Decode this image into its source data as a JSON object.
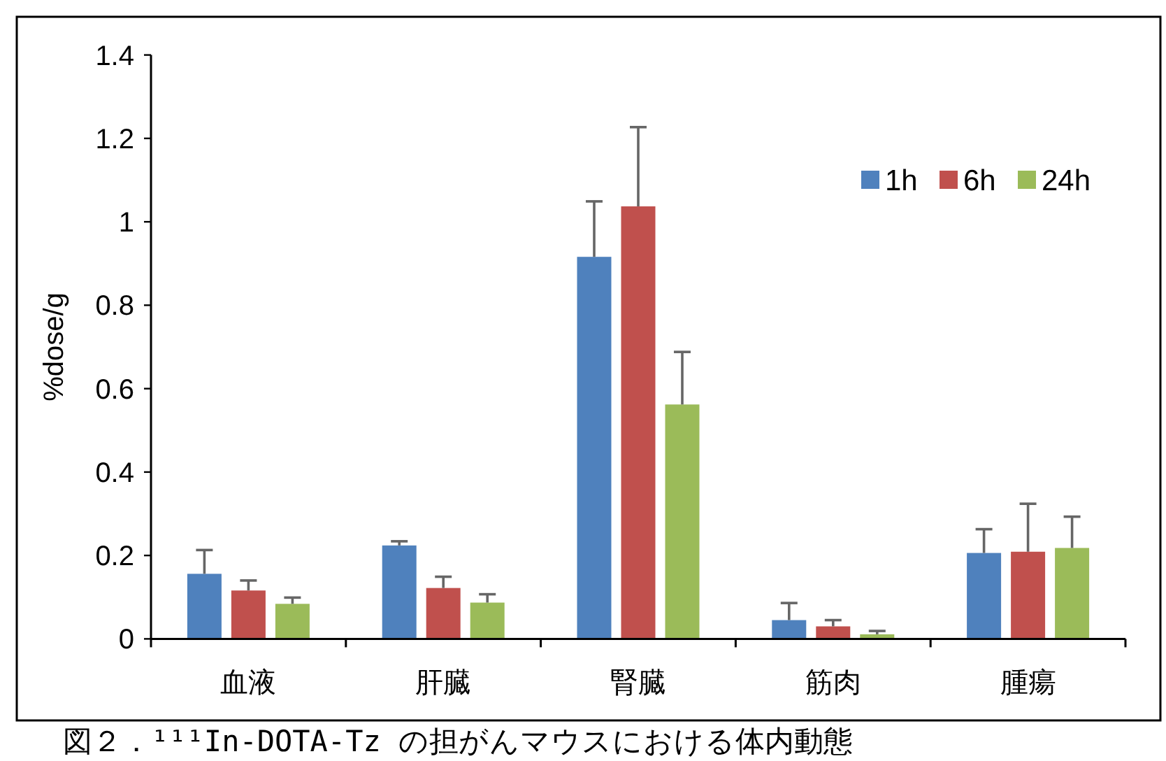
{
  "chart_data": {
    "type": "bar",
    "ylabel": "%dose/g",
    "categories": [
      "血液",
      "肝臓",
      "腎臓",
      "筋肉",
      "腫瘍"
    ],
    "series": [
      {
        "name": "1h",
        "color": "#4f81bd",
        "values": [
          0.156,
          0.224,
          0.916,
          0.045,
          0.206
        ],
        "errors": [
          [
            0.156,
            0.213
          ],
          [
            0.224,
            0.234
          ],
          [
            0.916,
            1.049
          ],
          [
            0.045,
            0.086
          ],
          [
            0.206,
            0.263
          ]
        ]
      },
      {
        "name": "6h",
        "color": "#c0504d",
        "values": [
          0.116,
          0.122,
          1.037,
          0.03,
          0.209
        ],
        "errors": [
          [
            0.116,
            0.14
          ],
          [
            0.122,
            0.149
          ],
          [
            1.037,
            1.227
          ],
          [
            0.03,
            0.045
          ],
          [
            0.209,
            0.324
          ]
        ]
      },
      {
        "name": "24h",
        "color": "#9bbb59",
        "values": [
          0.084,
          0.087,
          0.562,
          0.011,
          0.218
        ],
        "errors": [
          [
            0.084,
            0.099
          ],
          [
            0.087,
            0.107
          ],
          [
            0.562,
            0.688
          ],
          [
            0.011,
            0.019
          ],
          [
            0.218,
            0.293
          ]
        ]
      }
    ],
    "ylim": [
      0,
      1.4
    ],
    "yticks": [
      0,
      0.2,
      0.4,
      0.6,
      0.8,
      1,
      1.2,
      1.4
    ],
    "legend": "top right",
    "grid": false,
    "annotations": [
      "図２．¹¹¹In-DOTA-Tz の担がんマウスにおける体内動態"
    ]
  }
}
